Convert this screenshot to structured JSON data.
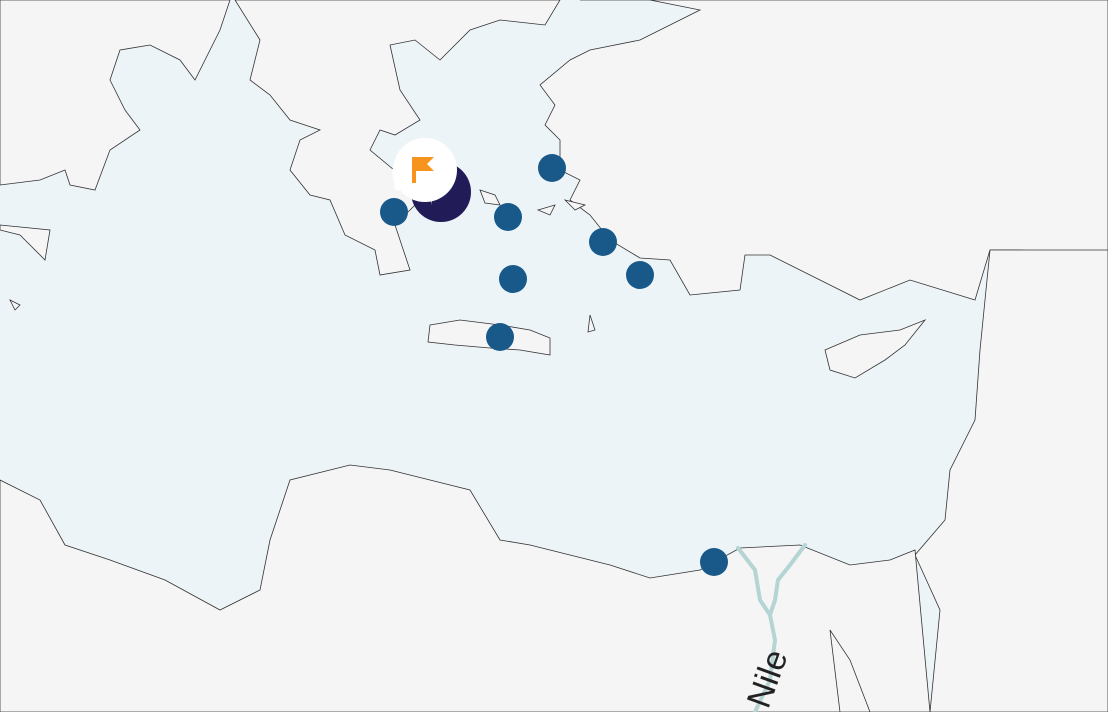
{
  "map": {
    "colors": {
      "sea": "#edf4f8",
      "land": "#f5f5f5",
      "marker": "#18598a",
      "cluster": "#211c57",
      "river": "#b5d4d4",
      "flag": "#f7941d"
    },
    "labels": {
      "river": "Nile"
    },
    "markers": [
      {
        "name": "marker-peloponnese"
      },
      {
        "name": "marker-cyclades-north"
      },
      {
        "name": "marker-lesbos-chios"
      },
      {
        "name": "marker-dodecanese"
      },
      {
        "name": "marker-rhodes"
      },
      {
        "name": "marker-cyclades-south"
      },
      {
        "name": "marker-crete"
      },
      {
        "name": "marker-alexandria"
      }
    ],
    "selected": {
      "icon": "flag-icon",
      "type": "cluster"
    }
  }
}
